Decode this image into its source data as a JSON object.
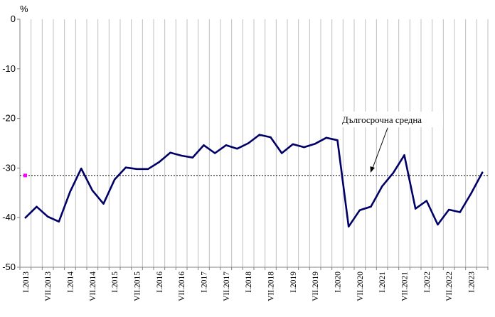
{
  "chart_data": {
    "type": "line",
    "ylabel": "%",
    "ylim": [
      -50,
      0
    ],
    "yticks": [
      0,
      -10,
      -20,
      -30,
      -40,
      -50
    ],
    "grid": "vertical",
    "annotation": "Дългосрочна средна",
    "long_term_average": -31.5,
    "colors": {
      "line": "#000066",
      "avg_line": "#000000",
      "avg_marker": "#ff00ff",
      "grid": "#c0c0c0"
    },
    "x": [
      "I.2013",
      "",
      "VII.2013",
      "",
      "I.2014",
      "",
      "VII.2014",
      "",
      "I.2015",
      "",
      "VII.2015",
      "",
      "I.2016",
      "",
      "VII.2016",
      "",
      "I.2017",
      "",
      "VII.2017",
      "",
      "I.2018",
      "",
      "VII.2018",
      "",
      "I.2019",
      "",
      "VII.2019",
      "",
      "I.2020",
      "",
      "VII.2020",
      "",
      "I.2021",
      "",
      "VII.2021",
      "",
      "I.2022",
      "",
      "VII.2022",
      "",
      "I.2023",
      ""
    ],
    "series": [
      {
        "values": [
          -40.0,
          -37.8,
          -39.8,
          -40.8,
          -34.8,
          -30.1,
          -34.5,
          -37.2,
          -32.3,
          -29.9,
          -30.2,
          -30.2,
          -28.8,
          -26.9,
          -27.5,
          -27.9,
          -25.4,
          -27.0,
          -25.4,
          -26.1,
          -25.0,
          -23.3,
          -23.8,
          -27.0,
          -25.2,
          -25.8,
          -25.1,
          -23.9,
          -24.4,
          -41.8,
          -38.5,
          -37.8,
          -33.7,
          -31.0,
          -27.4,
          -38.2,
          -36.6,
          -41.4,
          -38.4,
          -38.9,
          -35.1,
          -30.9
        ]
      }
    ]
  }
}
